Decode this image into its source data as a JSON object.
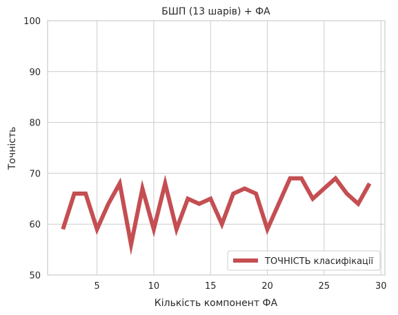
{
  "chart_data": {
    "type": "line",
    "title": "БШП (13 шарів) + ФА",
    "xlabel": "Кількість компонент ФА",
    "ylabel": "Точність",
    "xlim": [
      0.65,
      30.35
    ],
    "ylim": [
      50,
      100
    ],
    "x_ticks": [
      5,
      10,
      15,
      20,
      25,
      30
    ],
    "y_ticks": [
      50,
      60,
      70,
      80,
      90,
      100
    ],
    "grid": true,
    "legend_position": "lower-right",
    "series": [
      {
        "name": "ТОЧНІСТЬ класифікації",
        "color": "#c44e52",
        "x": [
          2,
          3,
          4,
          5,
          6,
          7,
          8,
          9,
          10,
          11,
          12,
          13,
          14,
          15,
          16,
          17,
          18,
          19,
          20,
          21,
          22,
          23,
          24,
          25,
          26,
          27,
          28,
          29
        ],
        "values": [
          59,
          66,
          66,
          59,
          64,
          68,
          56,
          67,
          59,
          68,
          59,
          65,
          64,
          65,
          60,
          66,
          67,
          66,
          59,
          64,
          69,
          69,
          65,
          67,
          69,
          66,
          64,
          68
        ]
      }
    ]
  }
}
